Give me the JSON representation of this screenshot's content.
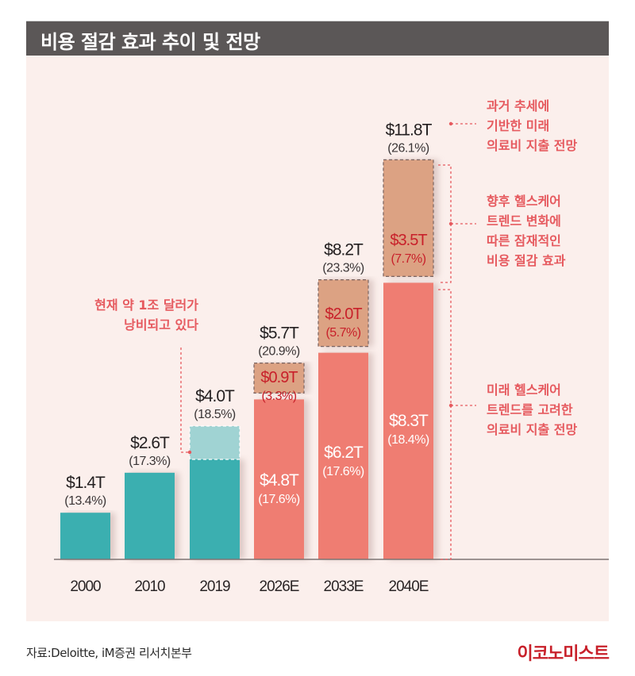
{
  "header": {
    "title": "비용 절감 효과 추이 및 전망"
  },
  "chart_data": {
    "type": "bar",
    "title": "비용 절감 효과 추이 및 전망",
    "xlabel": "",
    "ylabel": "",
    "ylim": [
      0,
      12
    ],
    "grid": false,
    "categories": [
      "2000",
      "2010",
      "2019",
      "2026E",
      "2033E",
      "2040E"
    ],
    "series": [
      {
        "name": "의료비 지출",
        "values": [
          1.4,
          2.6,
          3.0,
          4.8,
          6.2,
          8.3
        ]
      },
      {
        "name": "낭비 / 잠재적 비용 절감",
        "values": [
          0,
          0,
          1.0,
          0.9,
          2.0,
          3.5
        ]
      }
    ],
    "totals": [
      {
        "label": "$1.4T",
        "pct": "(13.4%)"
      },
      {
        "label": "$2.6T",
        "pct": "(17.3%)"
      },
      {
        "label": "$4.0T",
        "pct": "(18.5%)"
      },
      {
        "label": "$5.7T",
        "pct": "(20.9%)"
      },
      {
        "label": "$8.2T",
        "pct": "(23.3%)"
      },
      {
        "label": "$11.8T",
        "pct": "(26.1%)"
      }
    ],
    "inner_labels": [
      null,
      null,
      null,
      {
        "label": "$4.8T",
        "pct": "(17.6%)"
      },
      {
        "label": "$6.2T",
        "pct": "(17.6%)"
      },
      {
        "label": "$8.3T",
        "pct": "(18.4%)"
      }
    ],
    "savings_labels": [
      null,
      null,
      null,
      {
        "label": "$0.9T",
        "pct": "(3.3%)"
      },
      {
        "label": "$2.0T",
        "pct": "(5.7%)"
      },
      {
        "label": "$3.5T",
        "pct": "(7.7%)"
      }
    ],
    "annotations": {
      "waste": [
        "현재 약 1조 달러가",
        "낭비되고 있다"
      ],
      "past_trend": [
        "과거 추세에",
        "기반한 미래",
        "의료비 지출 전망"
      ],
      "savings": [
        "향후 헬스케어",
        "트렌드 변화에",
        "따른 잠재적인",
        "비용 절감 효과"
      ],
      "future": [
        "미래 헬스케어",
        "트렌드를 고려한",
        "의료비 지출 전망"
      ]
    },
    "colors": {
      "historical": "#3aafb0",
      "historical_waste": "#a0d3d3",
      "projected": "#ef7d72",
      "savings": "#dca283",
      "note": "#e65a5f",
      "savings_text": "#c8202a"
    }
  },
  "footer": {
    "source": "자료:Deloitte, iM증권 리서치본부",
    "publisher": "이코노미스트"
  }
}
